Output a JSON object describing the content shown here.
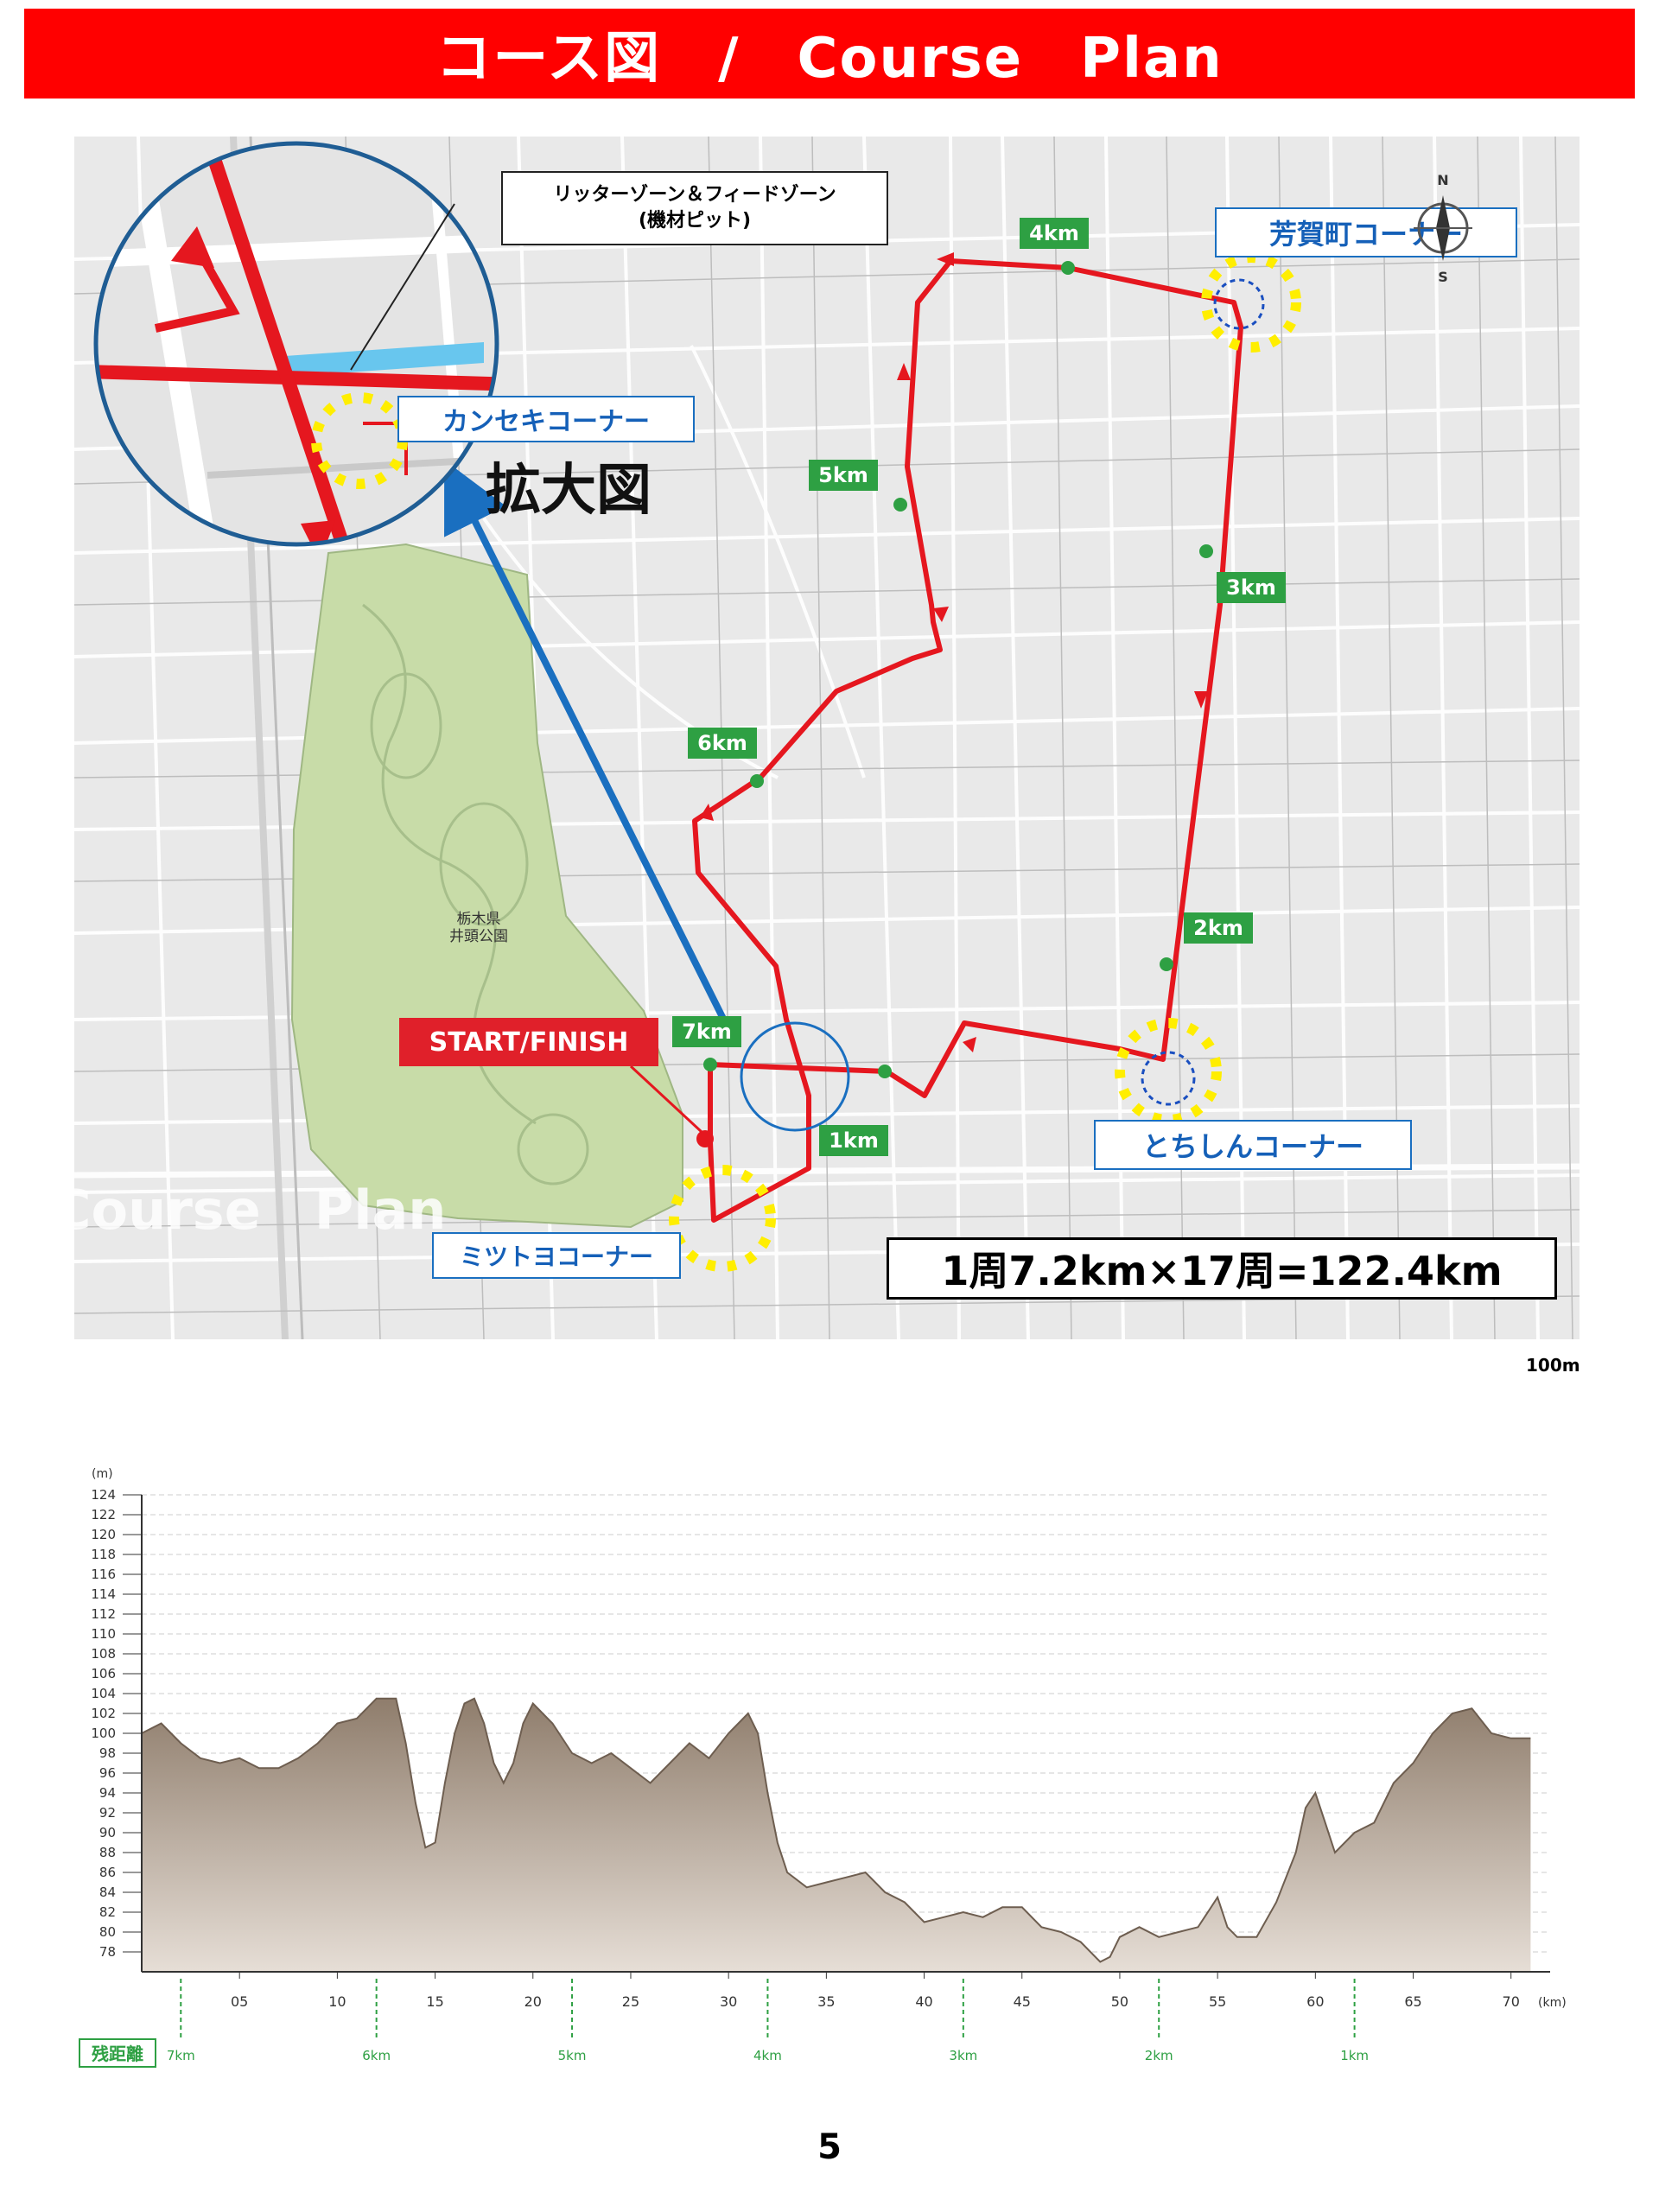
{
  "header": {
    "title": "コース図　/　Course　Plan"
  },
  "map": {
    "zone_label_line1": "リッターゾーン＆フィードゾーン",
    "zone_label_line2": "(機材ピット)",
    "enlarge_label": "拡大図",
    "park_line1": "栃木県",
    "park_line2": "井頭公園",
    "start_finish": "START/FINISH",
    "watermark": "Course　Plan",
    "lap_info": "1周7.2km×17周=122.4km",
    "scale": "100m",
    "compass_n": "N",
    "compass_s": "S",
    "corners": {
      "kanseki": "カンセキコーナー",
      "haga": "芳賀町コーナー",
      "tochishin": "とちしんコーナー",
      "mitsutoyo": "ミツトヨコーナー"
    },
    "km_markers": [
      "1km",
      "2km",
      "3km",
      "4km",
      "5km",
      "6km",
      "7km"
    ],
    "colors": {
      "route": "#e5171f",
      "park": "#c8dca8",
      "corner": "#ffee00",
      "arrow": "#1a6fc0"
    }
  },
  "elevation": {
    "y_unit": "(m)",
    "x_unit": "(km)",
    "y_ticks": [
      "124",
      "122",
      "120",
      "118",
      "116",
      "114",
      "112",
      "110",
      "108",
      "106",
      "104",
      "102",
      "100",
      "98",
      "96",
      "94",
      "92",
      "90",
      "88",
      "86",
      "84",
      "82",
      "80",
      "78"
    ],
    "x_ticks": [
      "05",
      "10",
      "15",
      "20",
      "25",
      "30",
      "35",
      "40",
      "45",
      "50",
      "55",
      "60",
      "65",
      "70"
    ],
    "remaining_label": "残距離",
    "remaining_markers": [
      "7km",
      "6km",
      "5km",
      "4km",
      "3km",
      "2km",
      "1km"
    ],
    "profile": [
      [
        0,
        100
      ],
      [
        1,
        101
      ],
      [
        2,
        99
      ],
      [
        3,
        97.5
      ],
      [
        4,
        97
      ],
      [
        5,
        97.5
      ],
      [
        6,
        96.5
      ],
      [
        7,
        96.5
      ],
      [
        8,
        97.5
      ],
      [
        9,
        99
      ],
      [
        10,
        101
      ],
      [
        11,
        101.5
      ],
      [
        12,
        103.5
      ],
      [
        13,
        103.5
      ],
      [
        13.5,
        99
      ],
      [
        14,
        93
      ],
      [
        14.5,
        88.5
      ],
      [
        15,
        89
      ],
      [
        15.5,
        95
      ],
      [
        16,
        100
      ],
      [
        16.5,
        103
      ],
      [
        17,
        103.5
      ],
      [
        17.5,
        101
      ],
      [
        18,
        97
      ],
      [
        18.5,
        95
      ],
      [
        19,
        97
      ],
      [
        19.5,
        101
      ],
      [
        20,
        103
      ],
      [
        21,
        101
      ],
      [
        22,
        98
      ],
      [
        23,
        97
      ],
      [
        24,
        98
      ],
      [
        25,
        96.5
      ],
      [
        26,
        95
      ],
      [
        27,
        97
      ],
      [
        28,
        99
      ],
      [
        29,
        97.5
      ],
      [
        30,
        100
      ],
      [
        31,
        102
      ],
      [
        31.5,
        100
      ],
      [
        32,
        94
      ],
      [
        32.5,
        89
      ],
      [
        33,
        86
      ],
      [
        34,
        84.5
      ],
      [
        35,
        85
      ],
      [
        36,
        85.5
      ],
      [
        37,
        86
      ],
      [
        38,
        84
      ],
      [
        39,
        83
      ],
      [
        40,
        81
      ],
      [
        41,
        81.5
      ],
      [
        42,
        82
      ],
      [
        43,
        81.5
      ],
      [
        44,
        82.5
      ],
      [
        45,
        82.5
      ],
      [
        46,
        80.5
      ],
      [
        47,
        80
      ],
      [
        48,
        79
      ],
      [
        49,
        77
      ],
      [
        49.5,
        77.5
      ],
      [
        50,
        79.5
      ],
      [
        51,
        80.5
      ],
      [
        52,
        79.5
      ],
      [
        53,
        80
      ],
      [
        54,
        80.5
      ],
      [
        55,
        83.5
      ],
      [
        55.5,
        80.5
      ],
      [
        56,
        79.5
      ],
      [
        57,
        79.5
      ],
      [
        58,
        83
      ],
      [
        59,
        88
      ],
      [
        59.5,
        92.5
      ],
      [
        60,
        94
      ],
      [
        60.5,
        91
      ],
      [
        61,
        88
      ],
      [
        62,
        90
      ],
      [
        63,
        91
      ],
      [
        64,
        95
      ],
      [
        65,
        97
      ],
      [
        66,
        100
      ],
      [
        67,
        102
      ],
      [
        68,
        102.5
      ],
      [
        69,
        100
      ],
      [
        70,
        99.5
      ],
      [
        71,
        99.5
      ]
    ],
    "ylim": [
      76,
      124
    ],
    "xlim": [
      0,
      72
    ]
  },
  "page_number": "5"
}
